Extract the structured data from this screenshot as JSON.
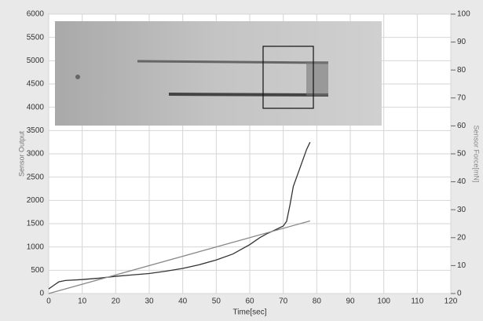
{
  "chart_data": {
    "type": "line",
    "x_label": "Time[sec]",
    "y_label": "Sensor Output",
    "y2_label": "Sensor Force[mN]",
    "xlim": [
      0,
      120
    ],
    "xticks": [
      0,
      10,
      20,
      30,
      40,
      50,
      60,
      70,
      80,
      90,
      100,
      110,
      120
    ],
    "ylim": [
      0,
      6000
    ],
    "yticks": [
      0,
      500,
      1000,
      1500,
      2000,
      2500,
      3000,
      3500,
      4000,
      4500,
      5000,
      5500,
      6000
    ],
    "y2lim": [
      0,
      100
    ],
    "y2ticks": [
      0,
      10,
      20,
      30,
      40,
      50,
      60,
      70,
      80,
      90,
      100
    ],
    "grid": true,
    "series": [
      {
        "color": "#333333",
        "x": [
          0,
          1,
          2,
          3,
          5,
          10,
          15,
          20,
          25,
          30,
          35,
          40,
          45,
          50,
          55,
          60,
          63,
          65,
          68,
          70,
          71,
          72,
          73,
          74,
          75,
          76,
          77,
          78
        ],
        "values": [
          100,
          150,
          200,
          250,
          280,
          300,
          330,
          370,
          400,
          430,
          480,
          540,
          620,
          720,
          850,
          1050,
          1200,
          1280,
          1380,
          1450,
          1550,
          1900,
          2300,
          2500,
          2700,
          2900,
          3100,
          3250
        ]
      },
      {
        "color": "#888888",
        "x": [
          0,
          78
        ],
        "values": [
          0,
          1560
        ]
      }
    ]
  }
}
